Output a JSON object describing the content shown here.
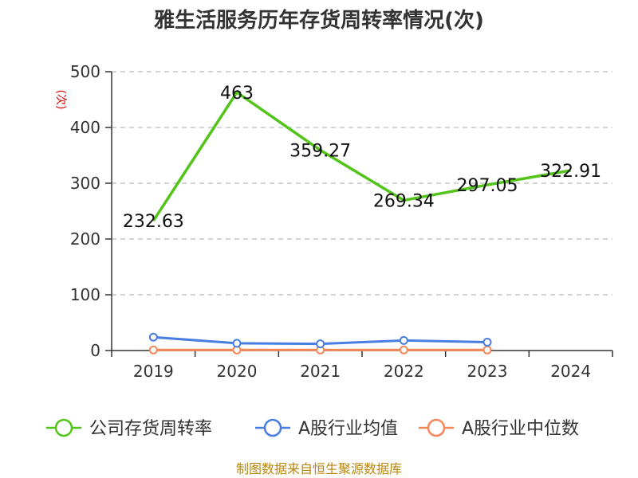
{
  "chart_data": {
    "type": "line",
    "title": "雅生活服务历年存货周转率情况(次)",
    "ylabel": "(次)",
    "xlabel": "",
    "ylim": [
      0,
      500
    ],
    "yticks": [
      "0",
      "100",
      "200",
      "300",
      "400",
      "500"
    ],
    "categories": [
      "2019",
      "2020",
      "2021",
      "2022",
      "2023",
      "2024"
    ],
    "series": [
      {
        "name": "公司存货周转率",
        "color": "#52c41a",
        "values": [
          232.63,
          463,
          359.27,
          269.34,
          297.05,
          322.91
        ],
        "labels": [
          "232.63",
          "463",
          "359.27",
          "269.34",
          "297.05",
          "322.91"
        ]
      },
      {
        "name": "A股行业均值",
        "color": "#4a7de0",
        "values": [
          24,
          13,
          12,
          18,
          15,
          null
        ]
      },
      {
        "name": "A股行业中位数",
        "color": "#f5875a",
        "values": [
          1,
          1,
          1,
          1,
          1,
          null
        ]
      }
    ],
    "grid": true,
    "legend": "bottom"
  },
  "source": "制图数据来自恒生聚源数据库"
}
